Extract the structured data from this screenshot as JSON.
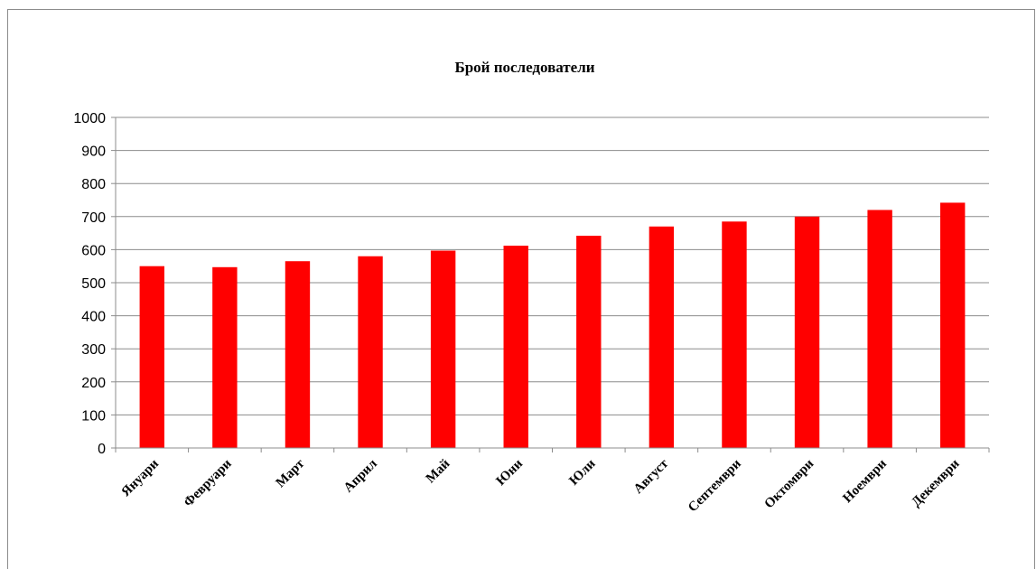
{
  "chart_data": {
    "type": "bar",
    "title": "Брой последователи",
    "categories": [
      "Януари",
      "Февруари",
      "Март",
      "Април",
      "Май",
      "Юни",
      "Юли",
      "Август",
      "Септември",
      "Октомври",
      "Ноември",
      "Декември"
    ],
    "series": [
      {
        "values": [
          550,
          547,
          565,
          580,
          597,
          612,
          642,
          670,
          685,
          700,
          720,
          742
        ],
        "color": "#ff0000"
      }
    ],
    "ylim": [
      0,
      1000
    ],
    "yticks": [
      "0",
      "100",
      "200",
      "300",
      "400",
      "500",
      "600",
      "700",
      "800",
      "900",
      "1000"
    ],
    "grid": true,
    "legend": "none"
  }
}
